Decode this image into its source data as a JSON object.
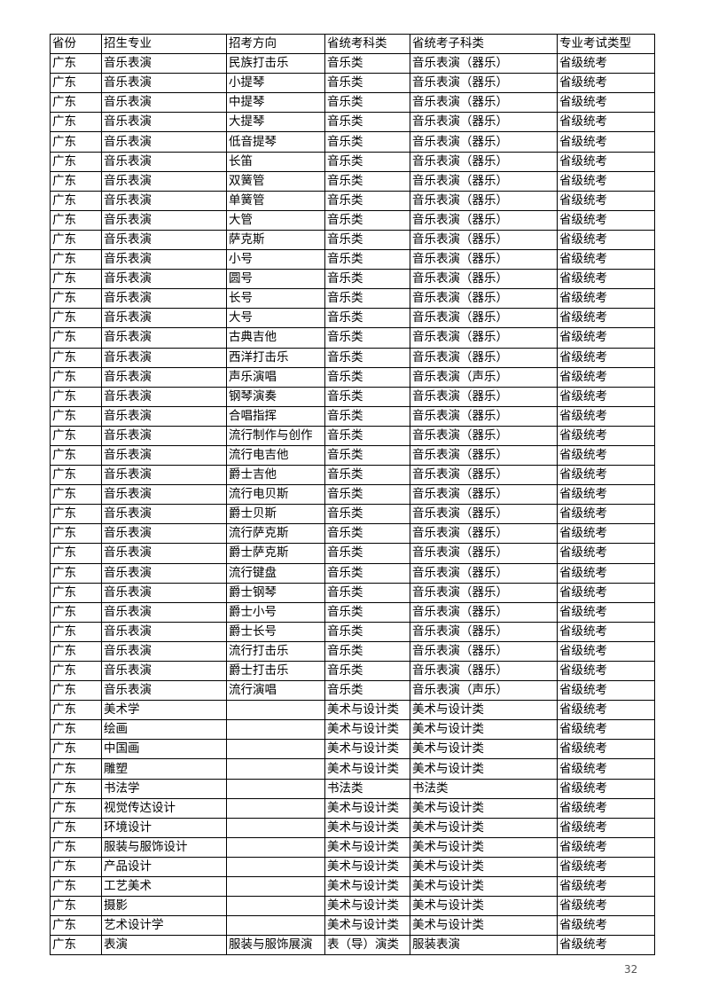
{
  "table": {
    "headers": [
      "省份",
      "招生专业",
      "招考方向",
      "省统考科类",
      "省统考子科类",
      "专业考试类型"
    ],
    "rows": [
      [
        "广东",
        "音乐表演",
        "民族打击乐",
        "音乐类",
        "音乐表演（器乐）",
        "省级统考"
      ],
      [
        "广东",
        "音乐表演",
        "小提琴",
        "音乐类",
        "音乐表演（器乐）",
        "省级统考"
      ],
      [
        "广东",
        "音乐表演",
        "中提琴",
        "音乐类",
        "音乐表演（器乐）",
        "省级统考"
      ],
      [
        "广东",
        "音乐表演",
        "大提琴",
        "音乐类",
        "音乐表演（器乐）",
        "省级统考"
      ],
      [
        "广东",
        "音乐表演",
        "低音提琴",
        "音乐类",
        "音乐表演（器乐）",
        "省级统考"
      ],
      [
        "广东",
        "音乐表演",
        "长笛",
        "音乐类",
        "音乐表演（器乐）",
        "省级统考"
      ],
      [
        "广东",
        "音乐表演",
        "双簧管",
        "音乐类",
        "音乐表演（器乐）",
        "省级统考"
      ],
      [
        "广东",
        "音乐表演",
        "单簧管",
        "音乐类",
        "音乐表演（器乐）",
        "省级统考"
      ],
      [
        "广东",
        "音乐表演",
        "大管",
        "音乐类",
        "音乐表演（器乐）",
        "省级统考"
      ],
      [
        "广东",
        "音乐表演",
        "萨克斯",
        "音乐类",
        "音乐表演（器乐）",
        "省级统考"
      ],
      [
        "广东",
        "音乐表演",
        "小号",
        "音乐类",
        "音乐表演（器乐）",
        "省级统考"
      ],
      [
        "广东",
        "音乐表演",
        "圆号",
        "音乐类",
        "音乐表演（器乐）",
        "省级统考"
      ],
      [
        "广东",
        "音乐表演",
        "长号",
        "音乐类",
        "音乐表演（器乐）",
        "省级统考"
      ],
      [
        "广东",
        "音乐表演",
        "大号",
        "音乐类",
        "音乐表演（器乐）",
        "省级统考"
      ],
      [
        "广东",
        "音乐表演",
        "古典吉他",
        "音乐类",
        "音乐表演（器乐）",
        "省级统考"
      ],
      [
        "广东",
        "音乐表演",
        "西洋打击乐",
        "音乐类",
        "音乐表演（器乐）",
        "省级统考"
      ],
      [
        "广东",
        "音乐表演",
        "声乐演唱",
        "音乐类",
        "音乐表演（声乐）",
        "省级统考"
      ],
      [
        "广东",
        "音乐表演",
        "钢琴演奏",
        "音乐类",
        "音乐表演（器乐）",
        "省级统考"
      ],
      [
        "广东",
        "音乐表演",
        "合唱指挥",
        "音乐类",
        "音乐表演（器乐）",
        "省级统考"
      ],
      [
        "广东",
        "音乐表演",
        "流行制作与创作",
        "音乐类",
        "音乐表演（器乐）",
        "省级统考"
      ],
      [
        "广东",
        "音乐表演",
        "流行电吉他",
        "音乐类",
        "音乐表演（器乐）",
        "省级统考"
      ],
      [
        "广东",
        "音乐表演",
        "爵士吉他",
        "音乐类",
        "音乐表演（器乐）",
        "省级统考"
      ],
      [
        "广东",
        "音乐表演",
        "流行电贝斯",
        "音乐类",
        "音乐表演（器乐）",
        "省级统考"
      ],
      [
        "广东",
        "音乐表演",
        "爵士贝斯",
        "音乐类",
        "音乐表演（器乐）",
        "省级统考"
      ],
      [
        "广东",
        "音乐表演",
        "流行萨克斯",
        "音乐类",
        "音乐表演（器乐）",
        "省级统考"
      ],
      [
        "广东",
        "音乐表演",
        "爵士萨克斯",
        "音乐类",
        "音乐表演（器乐）",
        "省级统考"
      ],
      [
        "广东",
        "音乐表演",
        "流行键盘",
        "音乐类",
        "音乐表演（器乐）",
        "省级统考"
      ],
      [
        "广东",
        "音乐表演",
        "爵士钢琴",
        "音乐类",
        "音乐表演（器乐）",
        "省级统考"
      ],
      [
        "广东",
        "音乐表演",
        "爵士小号",
        "音乐类",
        "音乐表演（器乐）",
        "省级统考"
      ],
      [
        "广东",
        "音乐表演",
        "爵士长号",
        "音乐类",
        "音乐表演（器乐）",
        "省级统考"
      ],
      [
        "广东",
        "音乐表演",
        "流行打击乐",
        "音乐类",
        "音乐表演（器乐）",
        "省级统考"
      ],
      [
        "广东",
        "音乐表演",
        "爵士打击乐",
        "音乐类",
        "音乐表演（器乐）",
        "省级统考"
      ],
      [
        "广东",
        "音乐表演",
        "流行演唱",
        "音乐类",
        "音乐表演（声乐）",
        "省级统考"
      ],
      [
        "广东",
        "美术学",
        "",
        "美术与设计类",
        "美术与设计类",
        "省级统考"
      ],
      [
        "广东",
        "绘画",
        "",
        "美术与设计类",
        "美术与设计类",
        "省级统考"
      ],
      [
        "广东",
        "中国画",
        "",
        "美术与设计类",
        "美术与设计类",
        "省级统考"
      ],
      [
        "广东",
        "雕塑",
        "",
        "美术与设计类",
        "美术与设计类",
        "省级统考"
      ],
      [
        "广东",
        "书法学",
        "",
        "书法类",
        "书法类",
        "省级统考"
      ],
      [
        "广东",
        "视觉传达设计",
        "",
        "美术与设计类",
        "美术与设计类",
        "省级统考"
      ],
      [
        "广东",
        "环境设计",
        "",
        "美术与设计类",
        "美术与设计类",
        "省级统考"
      ],
      [
        "广东",
        "服装与服饰设计",
        "",
        "美术与设计类",
        "美术与设计类",
        "省级统考"
      ],
      [
        "广东",
        "产品设计",
        "",
        "美术与设计类",
        "美术与设计类",
        "省级统考"
      ],
      [
        "广东",
        "工艺美术",
        "",
        "美术与设计类",
        "美术与设计类",
        "省级统考"
      ],
      [
        "广东",
        "摄影",
        "",
        "美术与设计类",
        "美术与设计类",
        "省级统考"
      ],
      [
        "广东",
        "艺术设计学",
        "",
        "美术与设计类",
        "美术与设计类",
        "省级统考"
      ],
      [
        "广东",
        "表演",
        "服装与服饰展演",
        "表（导）演类",
        "服装表演",
        "省级统考"
      ]
    ]
  },
  "page_number": "32"
}
